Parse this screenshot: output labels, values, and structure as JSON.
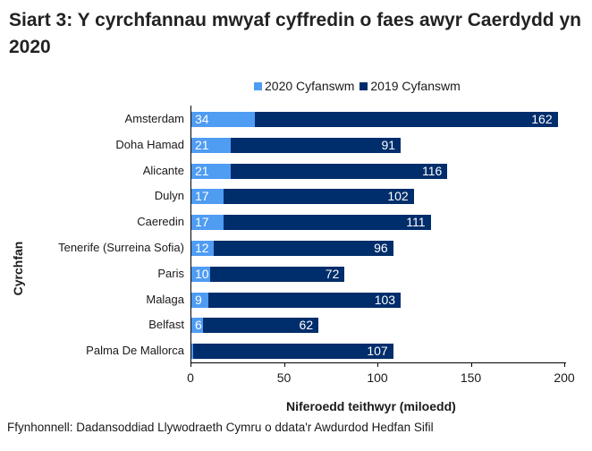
{
  "title": "Siart 3: Y cyrchfannau mwyaf cyffredin o faes awyr Caerdydd yn 2020",
  "legend": [
    {
      "label": "2020 Cyfanswm",
      "color": "#4f9cf3"
    },
    {
      "label": "2019 Cyfanswm",
      "color": "#002d6b"
    }
  ],
  "ylabel": "Cyrchfan",
  "xlabel": "Niferoedd teithwyr (miloedd)",
  "xticks": [
    "0",
    "50",
    "100",
    "150",
    "200"
  ],
  "source": "Ffynhonnell: Dadansoddiad Llywodraeth Cymru o ddata'r Awdurdod Hedfan Sifil",
  "chart_data": {
    "type": "bar",
    "orientation": "horizontal",
    "stacked": true,
    "title": "Siart 3: Y cyrchfannau mwyaf cyffredin o faes awyr Caerdydd yn 2020",
    "xlabel": "Niferoedd teithwyr (miloedd)",
    "ylabel": "Cyrchfan",
    "xlim": [
      0,
      200
    ],
    "xticks": [
      0,
      50,
      100,
      150,
      200
    ],
    "legend_position": "top",
    "grid": false,
    "categories": [
      "Amsterdam",
      "Doha Hamad",
      "Alicante",
      "Dulyn",
      "Caeredin",
      "Tenerife (Surreina Sofia)",
      "Paris",
      "Malaga",
      "Belfast",
      "Palma De Mallorca"
    ],
    "series": [
      {
        "name": "2020 Cyfanswm",
        "color": "#4f9cf3",
        "values": [
          34,
          21,
          21,
          17,
          17,
          12,
          10,
          9,
          6,
          1
        ]
      },
      {
        "name": "2019 Cyfanswm",
        "color": "#002d6b",
        "values": [
          162,
          91,
          116,
          102,
          111,
          96,
          72,
          103,
          62,
          107
        ]
      }
    ]
  }
}
